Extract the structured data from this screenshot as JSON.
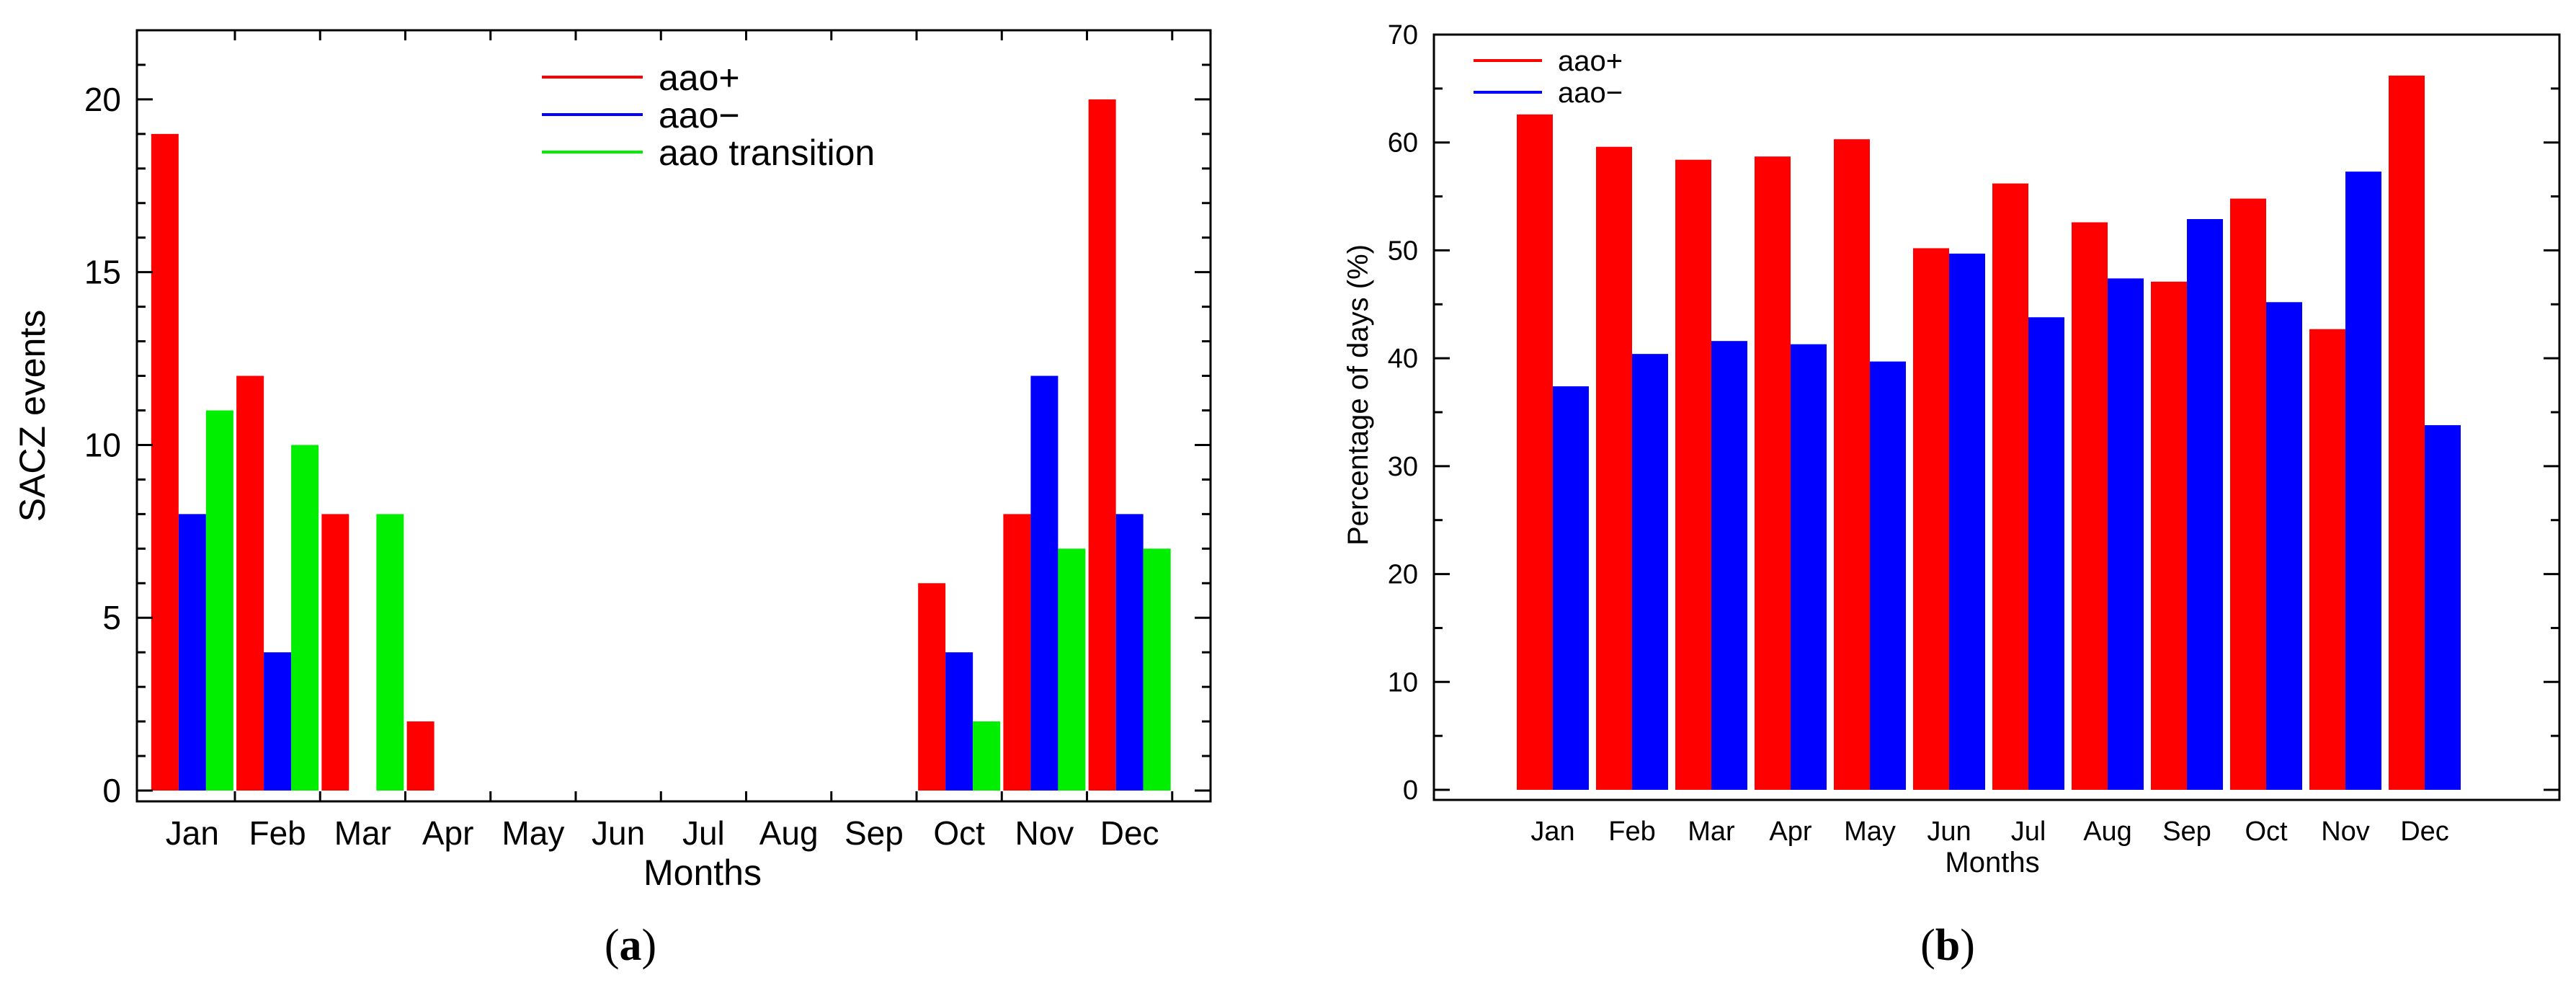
{
  "chart_data": [
    {
      "type": "bar",
      "categories": [
        "Jan",
        "Feb",
        "Mar",
        "Apr",
        "May",
        "Jun",
        "Jul",
        "Aug",
        "Sep",
        "Oct",
        "Nov",
        "Dec"
      ],
      "series": [
        {
          "name": "aao+",
          "color": "#ff0000",
          "values": [
            19,
            12,
            8,
            2,
            0,
            0,
            0,
            0,
            0,
            6,
            8,
            20
          ]
        },
        {
          "name": "aao−",
          "color": "#0000ff",
          "values": [
            8,
            4,
            0,
            0,
            0,
            0,
            0,
            0,
            0,
            4,
            12,
            8
          ]
        },
        {
          "name": "aao transition",
          "color": "#00ee00",
          "values": [
            11,
            10,
            8,
            0,
            0,
            0,
            0,
            0,
            0,
            2,
            7,
            7
          ]
        }
      ],
      "title": "",
      "xlabel": "Months",
      "ylabel": "SACZ events",
      "ylim": [
        0,
        22
      ],
      "yticks": [
        0,
        5,
        10,
        15,
        20
      ],
      "caption_prefix": "(",
      "caption_letter": "a",
      "caption_suffix": ")"
    },
    {
      "type": "bar",
      "categories": [
        "Jan",
        "Feb",
        "Mar",
        "Apr",
        "May",
        "Jun",
        "Jul",
        "Aug",
        "Sep",
        "Oct",
        "Nov",
        "Dec"
      ],
      "series": [
        {
          "name": "aao+",
          "color": "#ff0000",
          "values": [
            62.6,
            59.6,
            58.4,
            58.7,
            60.3,
            50.2,
            56.2,
            52.6,
            47.1,
            54.8,
            42.7,
            66.2
          ]
        },
        {
          "name": "aao−",
          "color": "#0000ff",
          "values": [
            37.4,
            40.4,
            41.6,
            41.3,
            39.7,
            49.7,
            43.8,
            47.4,
            52.9,
            45.2,
            57.3,
            33.8
          ]
        }
      ],
      "title": "",
      "xlabel": "Months",
      "ylabel": "Percentage of days (%)",
      "ylim": [
        0,
        70
      ],
      "yticks": [
        0,
        10,
        20,
        30,
        40,
        50,
        60,
        70
      ],
      "caption_prefix": "(",
      "caption_letter": "b",
      "caption_suffix": ")"
    }
  ]
}
